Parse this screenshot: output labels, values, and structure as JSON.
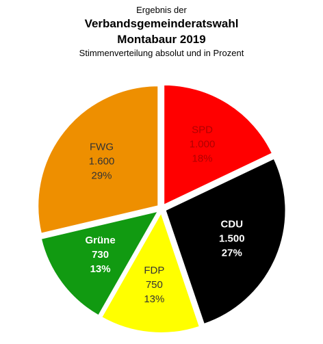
{
  "header": {
    "line1": "Ergebnis der",
    "line2": "Verbandsgemeinderatswahl",
    "line3": "Montabaur 2019",
    "line4": "Stimmenverteilung  absolut und in Prozent"
  },
  "chart_data": {
    "type": "pie",
    "title": "Ergebnis der Verbandsgemeinderatswahl Montabaur 2019",
    "subtitle": "Stimmenverteilung  absolut und in Prozent",
    "slices": [
      {
        "label": "SPD",
        "value": 1000,
        "value_text": "1.000",
        "percent": 18,
        "percent_text": "18%",
        "color": "#ff0000",
        "label_color": "#b00000"
      },
      {
        "label": "CDU",
        "value": 1500,
        "value_text": "1.500",
        "percent": 27,
        "percent_text": "27%",
        "color": "#000000",
        "label_color": "#ffffff"
      },
      {
        "label": "FDP",
        "value": 750,
        "value_text": "750",
        "percent": 13,
        "percent_text": "13%",
        "color": "#ffff00",
        "label_color": "#333333"
      },
      {
        "label": "Grüne",
        "value": 730,
        "value_text": "730",
        "percent": 13,
        "percent_text": "13%",
        "color": "#119a11",
        "label_color": "#ffffff"
      },
      {
        "label": "FWG",
        "value": 1600,
        "value_text": "1.600",
        "percent": 29,
        "percent_text": "29%",
        "color": "#ee8f00",
        "label_color": "#333333"
      }
    ],
    "start_angle_deg": 0,
    "direction": "clockwise",
    "exploded": true
  }
}
